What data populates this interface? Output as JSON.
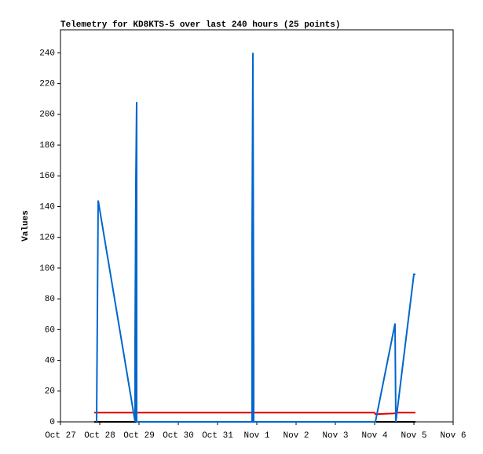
{
  "chart_data": {
    "type": "line",
    "title": "Telemetry for KD8KTS-5 over last 240 hours (25 points)",
    "y_label": "Values",
    "xlim": [
      0,
      10
    ],
    "xticks": [
      {
        "value": 0,
        "label": "Oct 27"
      },
      {
        "value": 1,
        "label": "Oct 28"
      },
      {
        "value": 2,
        "label": "Oct 29"
      },
      {
        "value": 3,
        "label": "Oct 30"
      },
      {
        "value": 4,
        "label": "Oct 31"
      },
      {
        "value": 5,
        "label": "Nov 1"
      },
      {
        "value": 6,
        "label": "Nov 2"
      },
      {
        "value": 7,
        "label": "Nov 3"
      },
      {
        "value": 8,
        "label": "Nov 4"
      },
      {
        "value": 9,
        "label": "Nov 5"
      },
      {
        "value": 10,
        "label": "Nov 6"
      }
    ],
    "ylim": [
      0,
      255
    ],
    "yticks": [
      0,
      20,
      40,
      60,
      80,
      100,
      120,
      140,
      160,
      180,
      200,
      220,
      240
    ],
    "series": [
      {
        "color": "#000000",
        "x": [
          0.86,
          9.04
        ],
        "values": [
          0,
          0
        ]
      },
      {
        "color": "#e00000",
        "x": [
          0.86,
          8.0,
          8.02,
          8.5,
          8.56,
          9.04
        ],
        "values": [
          6,
          6,
          5,
          5.5,
          6,
          6
        ]
      },
      {
        "color": "#0066cc",
        "x": [
          0.92,
          0.94,
          0.96,
          1.9,
          1.9,
          1.92,
          1.94,
          1.94,
          4.88,
          4.88,
          4.9,
          4.92,
          4.92,
          8.02,
          8.52,
          8.54,
          9.0,
          9.04
        ],
        "values": [
          0,
          72,
          144,
          0,
          52,
          156,
          208,
          0,
          0,
          120,
          240,
          48,
          0,
          0,
          64,
          0,
          96,
          96
        ]
      }
    ]
  }
}
